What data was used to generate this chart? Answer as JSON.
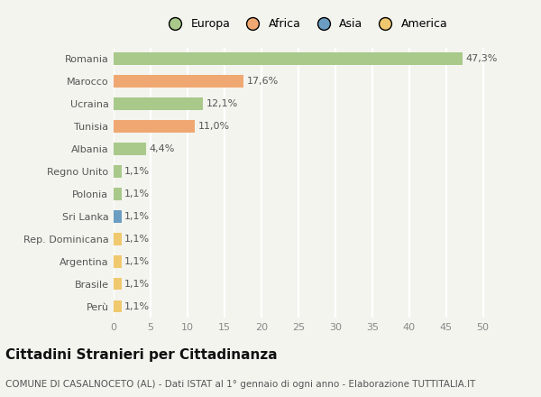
{
  "countries": [
    "Perù",
    "Brasile",
    "Argentina",
    "Rep. Dominicana",
    "Sri Lanka",
    "Polonia",
    "Regno Unito",
    "Albania",
    "Tunisia",
    "Ucraina",
    "Marocco",
    "Romania"
  ],
  "values": [
    1.1,
    1.1,
    1.1,
    1.1,
    1.1,
    1.1,
    1.1,
    4.4,
    11.0,
    12.1,
    17.6,
    47.3
  ],
  "labels": [
    "1,1%",
    "1,1%",
    "1,1%",
    "1,1%",
    "1,1%",
    "1,1%",
    "1,1%",
    "4,4%",
    "11,0%",
    "12,1%",
    "17,6%",
    "47,3%"
  ],
  "colors": [
    "#f0c96e",
    "#f0c96e",
    "#f0c96e",
    "#f0c96e",
    "#6b9dc2",
    "#a8c98a",
    "#a8c98a",
    "#a8c98a",
    "#f0a872",
    "#a8c98a",
    "#f0a872",
    "#a8c98a"
  ],
  "legend_labels": [
    "Europa",
    "Africa",
    "Asia",
    "America"
  ],
  "legend_colors": [
    "#a8c98a",
    "#f0a872",
    "#6b9dc2",
    "#f0c96e"
  ],
  "xlabel_ticks": [
    0,
    5,
    10,
    15,
    20,
    25,
    30,
    35,
    40,
    45,
    50
  ],
  "title": "Cittadini Stranieri per Cittadinanza",
  "subtitle": "COMUNE DI CASALNOCETO (AL) - Dati ISTAT al 1° gennaio di ogni anno - Elaborazione TUTTITALIA.IT",
  "bg_color": "#f4f4ef",
  "bar_height": 0.55,
  "title_fontsize": 11,
  "subtitle_fontsize": 7.5,
  "label_fontsize": 8,
  "tick_fontsize": 8,
  "legend_fontsize": 9,
  "xlim": [
    0,
    52
  ]
}
